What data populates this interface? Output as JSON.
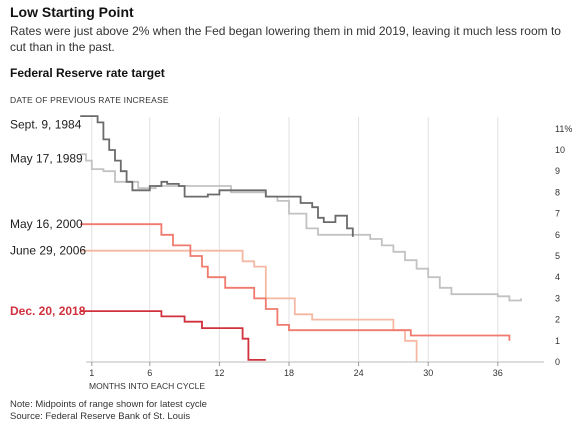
{
  "header": {
    "title": "Low Starting Point",
    "subtitle": "Rates were just above 2% when the Fed began lowering them in mid 2019, leaving it much less room to cut than in the past.",
    "chart_title": "Federal Reserve rate target"
  },
  "footer": {
    "note": "Note: Midpoints of range shown for latest cycle",
    "source": "Source: Federal Reserve Bank of St. Louis"
  },
  "chart_data": {
    "type": "line",
    "step": true,
    "series_header": "DATE OF PREVIOUS RATE INCREASE",
    "xlabel": "MONTHS INTO EACH CYCLE",
    "ylabel": "",
    "xlim": [
      0,
      40
    ],
    "ylim": [
      0,
      11.7
    ],
    "x_ticks": [
      1,
      6,
      12,
      18,
      24,
      30,
      36
    ],
    "y_ticks": [
      0,
      1,
      2,
      3,
      4,
      5,
      6,
      7,
      8,
      9,
      10,
      11
    ],
    "y_tick_labels": [
      "0",
      "1",
      "2",
      "3",
      "4",
      "5",
      "6",
      "7",
      "8",
      "9",
      "10",
      "11%"
    ],
    "grid": {
      "vertical": true,
      "horizontal": false
    },
    "series": [
      {
        "name": "Sept. 9, 1984",
        "color": "#6b6b6b",
        "label_at": 11.2,
        "points": [
          [
            0,
            11.6
          ],
          [
            1.5,
            11.6
          ],
          [
            1.5,
            11.3
          ],
          [
            2,
            11.3
          ],
          [
            2,
            10.5
          ],
          [
            2.5,
            10.5
          ],
          [
            2.5,
            10
          ],
          [
            3,
            10
          ],
          [
            3,
            9.5
          ],
          [
            3.5,
            9.5
          ],
          [
            3.5,
            9
          ],
          [
            4,
            9
          ],
          [
            4,
            8.5
          ],
          [
            4.5,
            8.5
          ],
          [
            4.5,
            8.1
          ],
          [
            6,
            8.1
          ],
          [
            6,
            8.3
          ],
          [
            7,
            8.3
          ],
          [
            7,
            8.5
          ],
          [
            7.5,
            8.5
          ],
          [
            7.5,
            8.4
          ],
          [
            8.5,
            8.4
          ],
          [
            8.5,
            8.3
          ],
          [
            9,
            8.3
          ],
          [
            9,
            7.8
          ],
          [
            11,
            7.8
          ],
          [
            11,
            7.9
          ],
          [
            12,
            7.9
          ],
          [
            12,
            8.1
          ],
          [
            16,
            8.1
          ],
          [
            16,
            7.8
          ],
          [
            19,
            7.8
          ],
          [
            19,
            7.5
          ],
          [
            20,
            7.5
          ],
          [
            20,
            7.3
          ],
          [
            20.5,
            7.3
          ],
          [
            20.5,
            6.8
          ],
          [
            21,
            6.8
          ],
          [
            21,
            6.6
          ],
          [
            22,
            6.6
          ],
          [
            22,
            6.9
          ],
          [
            23,
            6.9
          ],
          [
            23,
            6.3
          ],
          [
            23.5,
            6.3
          ],
          [
            23.5,
            5.9
          ]
        ]
      },
      {
        "name": "May 17, 1989",
        "color": "#c2c2c2",
        "label_at": 9.6,
        "points": [
          [
            0,
            9.8
          ],
          [
            0.5,
            9.8
          ],
          [
            0.5,
            9.5
          ],
          [
            1,
            9.5
          ],
          [
            1,
            9.1
          ],
          [
            2,
            9.1
          ],
          [
            2,
            9
          ],
          [
            3,
            9
          ],
          [
            3,
            8.5
          ],
          [
            5,
            8.5
          ],
          [
            5,
            8.2
          ],
          [
            6.5,
            8.2
          ],
          [
            6.5,
            8.3
          ],
          [
            13,
            8.3
          ],
          [
            13,
            8
          ],
          [
            16,
            8
          ],
          [
            16,
            7.8
          ],
          [
            17,
            7.8
          ],
          [
            17,
            7.6
          ],
          [
            18,
            7.6
          ],
          [
            18,
            7
          ],
          [
            19.5,
            7
          ],
          [
            19.5,
            6.3
          ],
          [
            20.5,
            6.3
          ],
          [
            20.5,
            6
          ],
          [
            25,
            6
          ],
          [
            25,
            5.8
          ],
          [
            26,
            5.8
          ],
          [
            26,
            5.5
          ],
          [
            27,
            5.5
          ],
          [
            27,
            5.2
          ],
          [
            28,
            5.2
          ],
          [
            28,
            4.8
          ],
          [
            29,
            4.8
          ],
          [
            29,
            4.4
          ],
          [
            30,
            4.4
          ],
          [
            30,
            4
          ],
          [
            31,
            4
          ],
          [
            31,
            3.5
          ],
          [
            32,
            3.5
          ],
          [
            32,
            3.2
          ],
          [
            36,
            3.2
          ],
          [
            36,
            3.1
          ],
          [
            37,
            3.1
          ],
          [
            37,
            2.9
          ],
          [
            38,
            2.9
          ],
          [
            38,
            3
          ]
        ]
      },
      {
        "name": "May 16, 2000",
        "color": "#f07a6d",
        "label_at": 6.5,
        "points": [
          [
            0,
            6.5
          ],
          [
            7,
            6.5
          ],
          [
            7,
            6
          ],
          [
            8,
            6
          ],
          [
            8,
            5.5
          ],
          [
            9.5,
            5.5
          ],
          [
            9.5,
            5
          ],
          [
            10.5,
            5
          ],
          [
            10.5,
            4.5
          ],
          [
            11,
            4.5
          ],
          [
            11,
            4
          ],
          [
            12.5,
            4
          ],
          [
            12.5,
            3.5
          ],
          [
            15,
            3.5
          ],
          [
            15,
            3
          ],
          [
            16,
            3
          ],
          [
            16,
            2.5
          ],
          [
            17,
            2.5
          ],
          [
            17,
            1.75
          ],
          [
            18,
            1.75
          ],
          [
            18,
            1.5
          ],
          [
            28.5,
            1.5
          ],
          [
            28.5,
            1.25
          ],
          [
            37,
            1.25
          ],
          [
            37,
            1
          ]
        ]
      },
      {
        "name": "June 29, 2006",
        "color": "#f5b8a3",
        "label_at": 5.25,
        "points": [
          [
            0,
            5.25
          ],
          [
            14,
            5.25
          ],
          [
            14,
            4.75
          ],
          [
            15,
            4.75
          ],
          [
            15,
            4.5
          ],
          [
            16,
            4.5
          ],
          [
            16,
            3
          ],
          [
            18.5,
            3
          ],
          [
            18.5,
            2.25
          ],
          [
            20,
            2.25
          ],
          [
            20,
            2
          ],
          [
            27,
            2
          ],
          [
            27,
            1.5
          ],
          [
            28,
            1.5
          ],
          [
            28,
            1
          ],
          [
            29,
            1
          ],
          [
            29,
            0
          ]
        ]
      },
      {
        "name": "Dec. 20, 2018",
        "color": "#d0313d",
        "label_at": 2.4,
        "highlight": true,
        "points": [
          [
            0,
            2.4
          ],
          [
            7,
            2.4
          ],
          [
            7,
            2.15
          ],
          [
            9,
            2.15
          ],
          [
            9,
            1.9
          ],
          [
            10.5,
            1.9
          ],
          [
            10.5,
            1.6
          ],
          [
            14,
            1.6
          ],
          [
            14,
            1.1
          ],
          [
            14.5,
            1.1
          ],
          [
            14.5,
            0.1
          ],
          [
            16,
            0.1
          ]
        ]
      }
    ]
  }
}
